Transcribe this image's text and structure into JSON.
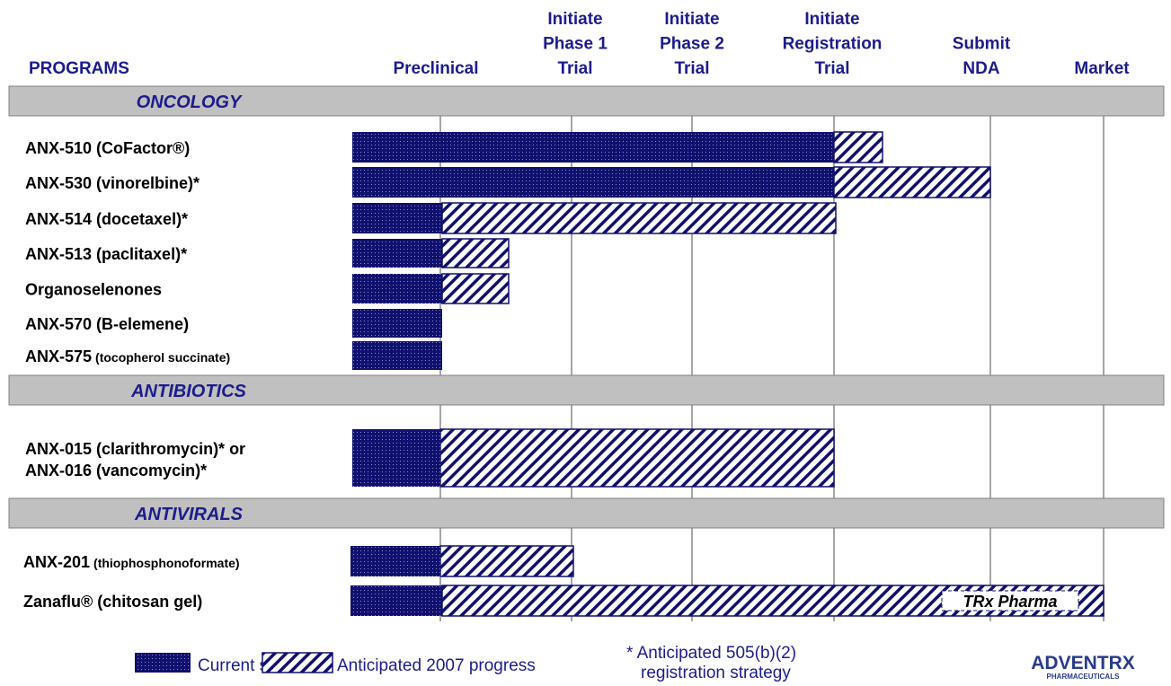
{
  "header": {
    "programs": "PROGRAMS",
    "columns": [
      [
        "Preclinical"
      ],
      [
        "Initiate",
        "Phase 1",
        "Trial"
      ],
      [
        "Initiate",
        "Phase 2",
        "Trial"
      ],
      [
        "Initiate",
        "Registration",
        "Trial"
      ],
      [
        "Submit",
        "NDA"
      ],
      [
        "Market"
      ]
    ]
  },
  "sections": [
    {
      "title": "ONCOLOGY",
      "rows": [
        {
          "label": [
            "ANX-510 (CoFactor®)"
          ]
        },
        {
          "label": [
            "ANX-530 (vinorelbine)*"
          ]
        },
        {
          "label": [
            "ANX-514 (docetaxel)*"
          ]
        },
        {
          "label": [
            "ANX-513 (paclitaxel)*"
          ]
        },
        {
          "label": [
            "Organoselenones"
          ]
        },
        {
          "label": [
            "ANX-570 (Β-elemene)"
          ]
        },
        {
          "label": [
            "ANX-575",
            "(tocopherol succinate)"
          ]
        }
      ]
    },
    {
      "title": "ANTIBIOTICS",
      "rows": [
        {
          "label": [
            "ANX-015 (clarithromycin)* or",
            "ANX-016 (vancomycin)*"
          ]
        }
      ]
    },
    {
      "title": "ANTIVIRALS",
      "rows": [
        {
          "label": [
            "ANX-201",
            "(thiophosphonoformate)"
          ]
        },
        {
          "label": [
            "Zanaflu® (chitosan gel)"
          ],
          "partner": "TRx Pharma"
        }
      ]
    }
  ],
  "legend": {
    "current": "Current status",
    "anticipated": "Anticipated 2007 progress"
  },
  "footnote": [
    "* Anticipated 505(b)(2)",
    "registration strategy"
  ],
  "logo": {
    "name": "ADVENTRX",
    "sub": "PHARMACEUTICALS"
  }
}
